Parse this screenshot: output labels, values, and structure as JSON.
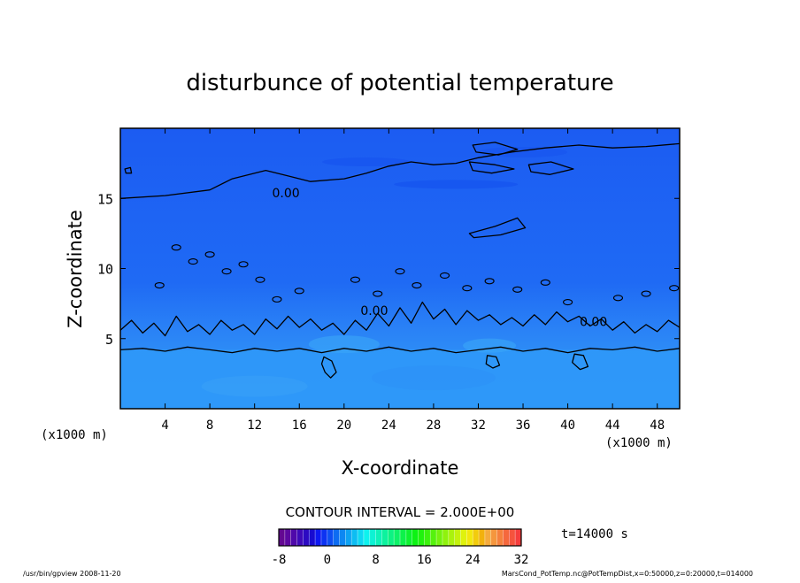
{
  "chart_data": {
    "type": "heatmap",
    "title": "disturbunce of potential temperature",
    "xlabel": "X-coordinate",
    "ylabel": "Z-coordinate",
    "x_unit_left": "(x1000 m)",
    "x_unit_right": "(x1000 m)",
    "xlim": [
      0,
      50
    ],
    "ylim": [
      0,
      20
    ],
    "x_ticks": [
      4,
      8,
      12,
      16,
      20,
      24,
      28,
      32,
      36,
      40,
      44,
      48
    ],
    "y_ticks": [
      5,
      10,
      15
    ],
    "contour_interval_text": "CONTOUR INTERVAL = 2.000E+00",
    "contour_labels": [
      {
        "text": "0.00",
        "x": 14.8,
        "z": 15.4
      },
      {
        "text": "0.00",
        "x": 22.7,
        "z": 7.0
      },
      {
        "text": "0.00",
        "x": 42.3,
        "z": 6.2
      }
    ],
    "contour_zero_surface": [
      [
        0,
        4.2
      ],
      [
        2,
        4.3
      ],
      [
        4,
        4.1
      ],
      [
        6,
        4.4
      ],
      [
        8,
        4.2
      ],
      [
        10,
        4.0
      ],
      [
        12,
        4.3
      ],
      [
        14,
        4.1
      ],
      [
        16,
        4.3
      ],
      [
        18,
        4.0
      ],
      [
        20,
        4.3
      ],
      [
        22,
        4.1
      ],
      [
        24,
        4.4
      ],
      [
        26,
        4.1
      ],
      [
        28,
        4.3
      ],
      [
        30,
        4.0
      ],
      [
        32,
        4.2
      ],
      [
        34,
        4.4
      ],
      [
        36,
        4.1
      ],
      [
        38,
        4.3
      ],
      [
        40,
        4.0
      ],
      [
        42,
        4.3
      ],
      [
        44,
        4.2
      ],
      [
        46,
        4.4
      ],
      [
        48,
        4.1
      ],
      [
        50,
        4.3
      ]
    ],
    "contour_zero_mid": [
      [
        0,
        5.6
      ],
      [
        1,
        6.3
      ],
      [
        2,
        5.4
      ],
      [
        3,
        6.1
      ],
      [
        4,
        5.2
      ],
      [
        5,
        6.6
      ],
      [
        6,
        5.5
      ],
      [
        7,
        6.0
      ],
      [
        8,
        5.3
      ],
      [
        9,
        6.3
      ],
      [
        10,
        5.6
      ],
      [
        11,
        6.0
      ],
      [
        12,
        5.3
      ],
      [
        13,
        6.4
      ],
      [
        14,
        5.7
      ],
      [
        15,
        6.6
      ],
      [
        16,
        5.8
      ],
      [
        17,
        6.4
      ],
      [
        18,
        5.6
      ],
      [
        19,
        6.1
      ],
      [
        20,
        5.3
      ],
      [
        21,
        6.3
      ],
      [
        22,
        5.6
      ],
      [
        23,
        6.8
      ],
      [
        24,
        5.9
      ],
      [
        25,
        7.2
      ],
      [
        26,
        6.1
      ],
      [
        27,
        7.6
      ],
      [
        28,
        6.4
      ],
      [
        29,
        7.1
      ],
      [
        30,
        6.0
      ],
      [
        31,
        7.0
      ],
      [
        32,
        6.3
      ],
      [
        33,
        6.7
      ],
      [
        34,
        6.0
      ],
      [
        35,
        6.5
      ],
      [
        36,
        5.9
      ],
      [
        37,
        6.7
      ],
      [
        38,
        6.0
      ],
      [
        39,
        6.9
      ],
      [
        40,
        6.2
      ],
      [
        41,
        6.6
      ],
      [
        42,
        5.9
      ],
      [
        43,
        6.4
      ],
      [
        44,
        5.6
      ],
      [
        45,
        6.2
      ],
      [
        46,
        5.4
      ],
      [
        47,
        6.0
      ],
      [
        48,
        5.5
      ],
      [
        49,
        6.3
      ],
      [
        50,
        5.8
      ]
    ],
    "contour_zero_upper": [
      [
        0,
        15.0
      ],
      [
        4,
        15.2
      ],
      [
        8,
        15.6
      ],
      [
        10,
        16.4
      ],
      [
        13,
        17.0
      ],
      [
        15,
        16.6
      ],
      [
        17,
        16.2
      ],
      [
        20,
        16.4
      ],
      [
        22,
        16.8
      ],
      [
        24,
        17.3
      ],
      [
        26,
        17.6
      ],
      [
        28,
        17.4
      ],
      [
        30,
        17.5
      ],
      [
        32,
        17.9
      ],
      [
        35,
        18.3
      ],
      [
        38,
        18.6
      ],
      [
        41,
        18.8
      ],
      [
        44,
        18.6
      ],
      [
        47,
        18.7
      ],
      [
        50,
        18.9
      ]
    ],
    "contour_closed": [
      [
        [
          18.2,
          3.7
        ],
        [
          18.9,
          3.4
        ],
        [
          19.3,
          2.6
        ],
        [
          18.8,
          2.2
        ],
        [
          18.3,
          2.6
        ],
        [
          18.0,
          3.2
        ]
      ],
      [
        [
          32.8,
          3.8
        ],
        [
          33.6,
          3.7
        ],
        [
          33.9,
          3.1
        ],
        [
          33.3,
          2.9
        ],
        [
          32.7,
          3.2
        ]
      ],
      [
        [
          40.6,
          3.9
        ],
        [
          41.4,
          3.8
        ],
        [
          41.8,
          3.0
        ],
        [
          41.1,
          2.8
        ],
        [
          40.4,
          3.3
        ]
      ],
      [
        [
          31.5,
          18.8
        ],
        [
          33.5,
          19.0
        ],
        [
          35.5,
          18.5
        ],
        [
          33.8,
          18.1
        ],
        [
          31.8,
          18.3
        ]
      ],
      [
        [
          31.2,
          17.6
        ],
        [
          33.5,
          17.4
        ],
        [
          35.2,
          17.1
        ],
        [
          33.2,
          16.8
        ],
        [
          31.5,
          17.0
        ]
      ],
      [
        [
          36.5,
          17.4
        ],
        [
          38.5,
          17.6
        ],
        [
          40.5,
          17.1
        ],
        [
          38.4,
          16.7
        ],
        [
          36.7,
          16.9
        ]
      ],
      [
        [
          31.2,
          12.5
        ],
        [
          33.5,
          13.0
        ],
        [
          35.5,
          13.6
        ],
        [
          36.2,
          12.9
        ],
        [
          34.0,
          12.4
        ],
        [
          31.6,
          12.2
        ]
      ],
      [
        [
          0.4,
          17.1
        ],
        [
          0.9,
          17.2
        ],
        [
          1.0,
          16.8
        ],
        [
          0.5,
          16.8
        ]
      ]
    ],
    "colorbar": {
      "ticks": [
        -8,
        0,
        8,
        16,
        24,
        32
      ],
      "min": -8,
      "max": 32
    },
    "time_label": "t=14000 s"
  },
  "footer": {
    "left": "/usr/bin/gpview   2008-11-20",
    "right": "MarsCond_PotTemp.nc@PotTempDist,x=0:50000,z=0:20000,t=014000"
  }
}
